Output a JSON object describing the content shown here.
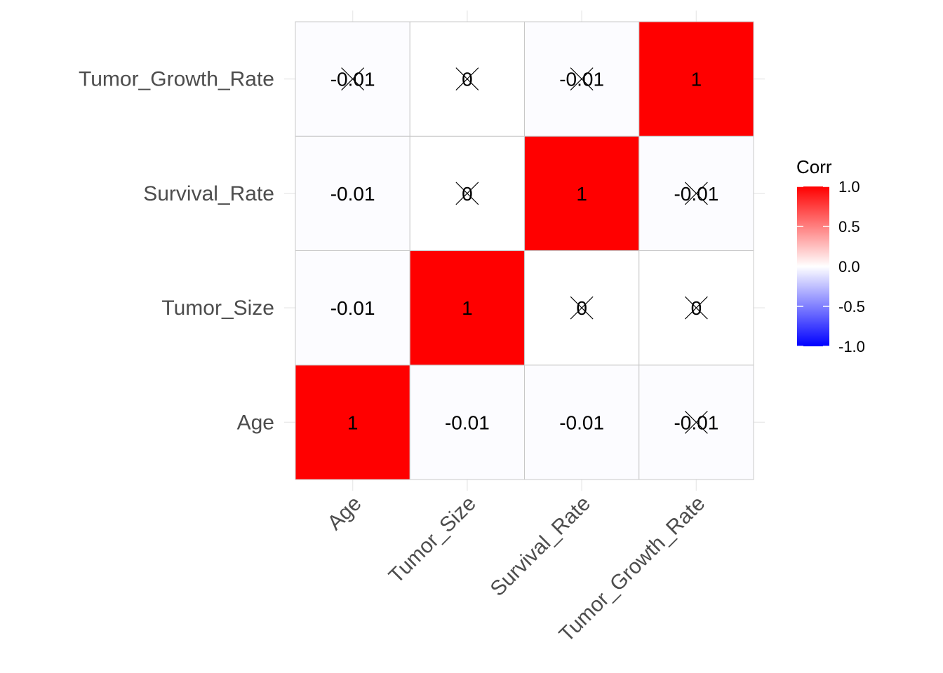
{
  "chart_data": {
    "type": "heatmap",
    "variables": [
      "Age",
      "Tumor_Size",
      "Survival_Rate",
      "Tumor_Growth_Rate"
    ],
    "x_labels": [
      "Age",
      "Tumor_Size",
      "Survival_Rate",
      "Tumor_Growth_Rate"
    ],
    "y_labels": [
      "Age",
      "Tumor_Size",
      "Survival_Rate",
      "Tumor_Growth_Rate"
    ],
    "cells": [
      {
        "x": "Age",
        "y": "Age",
        "value": 1,
        "label": "1",
        "crossed": false
      },
      {
        "x": "Tumor_Size",
        "y": "Age",
        "value": -0.01,
        "label": "-0.01",
        "crossed": false
      },
      {
        "x": "Survival_Rate",
        "y": "Age",
        "value": -0.01,
        "label": "-0.01",
        "crossed": false
      },
      {
        "x": "Tumor_Growth_Rate",
        "y": "Age",
        "value": -0.01,
        "label": "-0.01",
        "crossed": true
      },
      {
        "x": "Age",
        "y": "Tumor_Size",
        "value": -0.01,
        "label": "-0.01",
        "crossed": false
      },
      {
        "x": "Tumor_Size",
        "y": "Tumor_Size",
        "value": 1,
        "label": "1",
        "crossed": false
      },
      {
        "x": "Survival_Rate",
        "y": "Tumor_Size",
        "value": 0,
        "label": "0",
        "crossed": true
      },
      {
        "x": "Tumor_Growth_Rate",
        "y": "Tumor_Size",
        "value": 0,
        "label": "0",
        "crossed": true
      },
      {
        "x": "Age",
        "y": "Survival_Rate",
        "value": -0.01,
        "label": "-0.01",
        "crossed": false
      },
      {
        "x": "Tumor_Size",
        "y": "Survival_Rate",
        "value": 0,
        "label": "0",
        "crossed": true
      },
      {
        "x": "Survival_Rate",
        "y": "Survival_Rate",
        "value": 1,
        "label": "1",
        "crossed": false
      },
      {
        "x": "Tumor_Growth_Rate",
        "y": "Survival_Rate",
        "value": -0.01,
        "label": "-0.01",
        "crossed": true
      },
      {
        "x": "Age",
        "y": "Tumor_Growth_Rate",
        "value": -0.01,
        "label": "-0.01",
        "crossed": true
      },
      {
        "x": "Tumor_Size",
        "y": "Tumor_Growth_Rate",
        "value": 0,
        "label": "0",
        "crossed": true
      },
      {
        "x": "Survival_Rate",
        "y": "Tumor_Growth_Rate",
        "value": -0.01,
        "label": "-0.01",
        "crossed": true
      },
      {
        "x": "Tumor_Growth_Rate",
        "y": "Tumor_Growth_Rate",
        "value": 1,
        "label": "1",
        "crossed": false
      }
    ],
    "legend": {
      "title": "Corr",
      "ticks": [
        1.0,
        0.5,
        0.0,
        -0.5,
        -1.0
      ],
      "tick_labels": [
        "1.0",
        "0.5",
        "0.0",
        "-0.5",
        "-1.0"
      ],
      "range": [
        -1,
        1
      ],
      "placement": "right"
    },
    "colors": {
      "low": "#0000FF",
      "mid": "#FFFFFF",
      "high": "#FF0000",
      "cell_border": "#C8C8C8",
      "grid": "#EBEBEB",
      "axis_text": "#4D4D4D",
      "label_text": "#000000"
    },
    "title": "",
    "xlabel": "",
    "ylabel": ""
  }
}
